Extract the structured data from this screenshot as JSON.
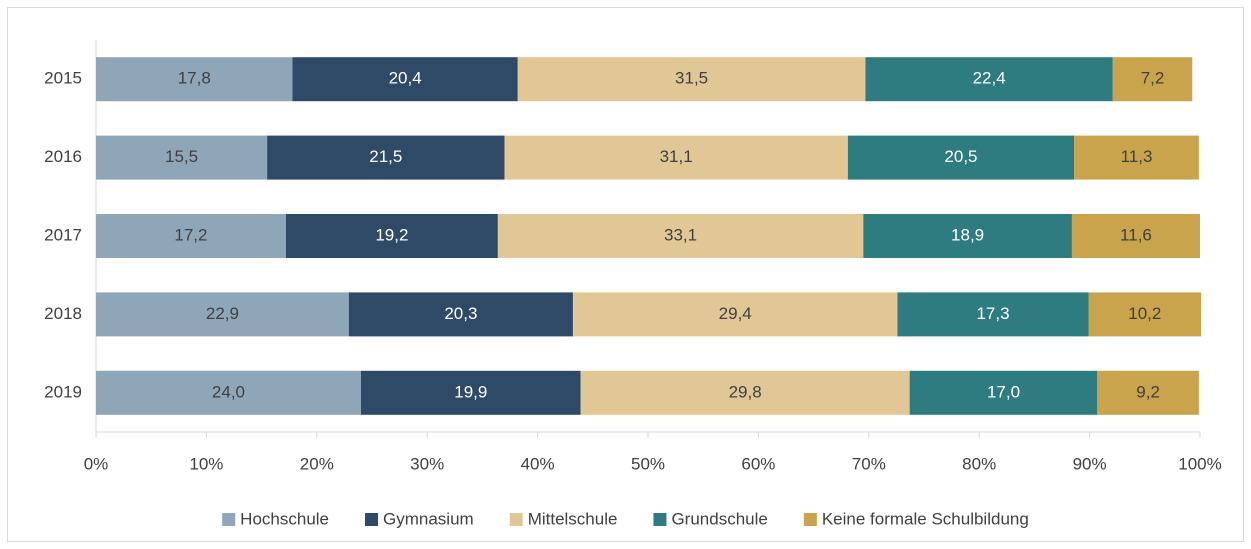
{
  "chart_data": {
    "type": "stacked_barh",
    "categories": [
      "2015",
      "2016",
      "2017",
      "2018",
      "2019"
    ],
    "series": [
      {
        "name": "Hochschule",
        "color": "#8fa5b8",
        "values": [
          17.8,
          15.5,
          17.2,
          22.9,
          24.0
        ],
        "value_labels": [
          "17,8",
          "15,5",
          "17,2",
          "22,9",
          "24,0"
        ]
      },
      {
        "name": "Gymnasium",
        "color": "#2e4a66",
        "values": [
          20.4,
          21.5,
          19.2,
          20.3,
          19.9
        ],
        "value_labels": [
          "20,4",
          "21,5",
          "19,2",
          "20,3",
          "19,9"
        ]
      },
      {
        "name": "Mittelschule",
        "color": "#e2c796",
        "values": [
          31.5,
          31.1,
          33.1,
          29.4,
          29.8
        ],
        "value_labels": [
          "31,5",
          "31,1",
          "33,1",
          "29,4",
          "29,8"
        ]
      },
      {
        "name": "Grundschule",
        "color": "#2e7b80",
        "values": [
          22.4,
          20.5,
          18.9,
          17.3,
          17.0
        ],
        "value_labels": [
          "22,4",
          "20,5",
          "18,9",
          "17,3",
          "17,0"
        ]
      },
      {
        "name": "Keine formale Schulbildung",
        "color": "#c9a44c",
        "values": [
          7.2,
          11.3,
          11.6,
          10.2,
          9.2
        ],
        "value_labels": [
          "7,2",
          "11,3",
          "11,6",
          "10,2",
          "9,2"
        ]
      }
    ],
    "xlim": [
      0,
      100
    ],
    "xticks": [
      {
        "value": 0,
        "label": "0%"
      },
      {
        "value": 10,
        "label": "10%"
      },
      {
        "value": 20,
        "label": "20%"
      },
      {
        "value": 30,
        "label": "30%"
      },
      {
        "value": 40,
        "label": "40%"
      },
      {
        "value": 50,
        "label": "50%"
      },
      {
        "value": 60,
        "label": "60%"
      },
      {
        "value": 70,
        "label": "70%"
      },
      {
        "value": 80,
        "label": "80%"
      },
      {
        "value": 90,
        "label": "90%"
      },
      {
        "value": 100,
        "label": "100%"
      }
    ],
    "legend": "bottom"
  }
}
